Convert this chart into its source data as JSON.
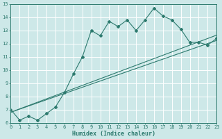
{
  "title": "",
  "xlabel": "Humidex (Indice chaleur)",
  "xlim": [
    0,
    23
  ],
  "ylim": [
    6,
    15
  ],
  "xticks": [
    0,
    1,
    2,
    3,
    4,
    5,
    6,
    7,
    8,
    9,
    10,
    11,
    12,
    13,
    14,
    15,
    16,
    17,
    18,
    19,
    20,
    21,
    22,
    23
  ],
  "yticks": [
    6,
    7,
    8,
    9,
    10,
    11,
    12,
    13,
    14,
    15
  ],
  "bg_color": "#cde8e8",
  "line_color": "#2d7a6e",
  "grid_color": "#ffffff",
  "line1_x": [
    0,
    1,
    2,
    3,
    4,
    5,
    6,
    7,
    8,
    9,
    10,
    11,
    12,
    13,
    14,
    15,
    16,
    17,
    18,
    19,
    20,
    21,
    22,
    23
  ],
  "line1_y": [
    7.0,
    6.2,
    6.5,
    6.2,
    6.7,
    7.2,
    8.3,
    9.7,
    11.0,
    13.0,
    12.6,
    13.7,
    13.3,
    13.8,
    13.0,
    13.8,
    14.7,
    14.1,
    13.8,
    13.1,
    12.1,
    12.1,
    11.9,
    12.4
  ],
  "line2_x": [
    0,
    23
  ],
  "line2_y": [
    6.8,
    12.25
  ],
  "line3_x": [
    0,
    23
  ],
  "line3_y": [
    6.8,
    12.65
  ],
  "tick_fontsize": 5.0,
  "xlabel_fontsize": 6.0
}
